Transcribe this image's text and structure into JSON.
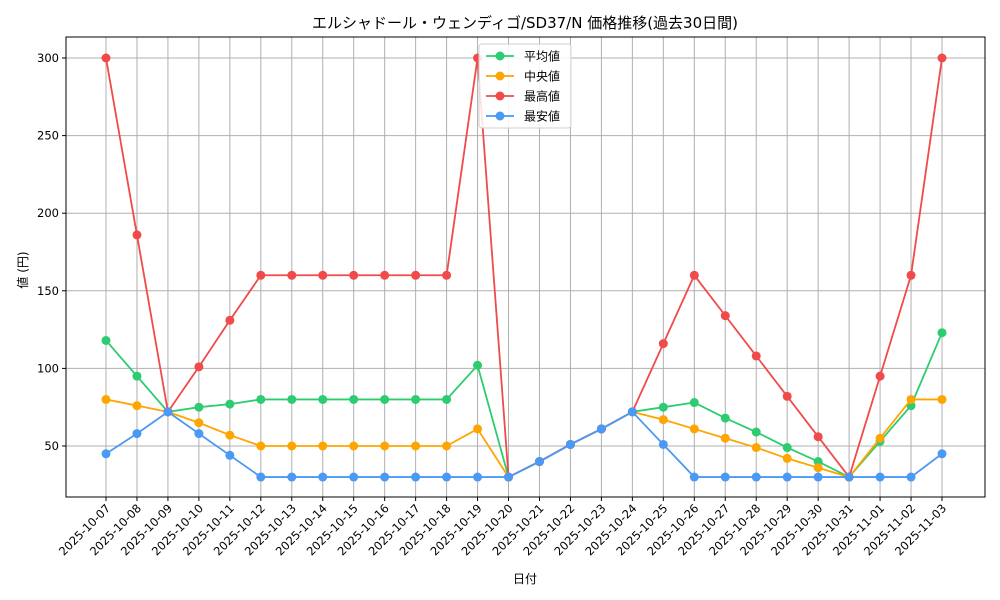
{
  "chart_data": {
    "type": "line",
    "title": "エルシャドール・ウェンディゴ/SD37/N 価格推移(過去30日間)",
    "xlabel": "日付",
    "ylabel": "値 (円)",
    "ylim": [
      16,
      315
    ],
    "yticks": [
      50,
      100,
      150,
      200,
      250,
      300
    ],
    "grid": true,
    "legend_position": "upper center",
    "x": [
      "2025-10-07",
      "2025-10-08",
      "2025-10-09",
      "2025-10-10",
      "2025-10-11",
      "2025-10-12",
      "2025-10-13",
      "2025-10-14",
      "2025-10-15",
      "2025-10-16",
      "2025-10-17",
      "2025-10-18",
      "2025-10-19",
      "2025-10-20",
      "2025-10-21",
      "2025-10-22",
      "2025-10-23",
      "2025-10-24",
      "2025-10-25",
      "2025-10-26",
      "2025-10-27",
      "2025-10-28",
      "2025-10-29",
      "2025-10-30",
      "2025-10-31",
      "2025-11-01",
      "2025-11-02",
      "2025-11-03"
    ],
    "series": [
      {
        "name": "平均値",
        "color": "#2ecc71",
        "values": [
          118,
          95,
          72,
          75,
          77,
          80,
          80,
          80,
          80,
          80,
          80,
          80,
          102,
          30,
          40,
          51,
          61,
          72,
          75,
          78,
          68,
          59,
          49,
          40,
          30,
          53,
          76,
          123
        ]
      },
      {
        "name": "中央値",
        "color": "#ffa500",
        "values": [
          80,
          76,
          72,
          65,
          57,
          50,
          50,
          50,
          50,
          50,
          50,
          50,
          61,
          30,
          40,
          51,
          61,
          72,
          67,
          61,
          55,
          49,
          42,
          36,
          30,
          55,
          80,
          80
        ]
      },
      {
        "name": "最高値",
        "color": "#f04a4a",
        "values": [
          300,
          186,
          72,
          101,
          131,
          160,
          160,
          160,
          160,
          160,
          160,
          160,
          300,
          30,
          40,
          51,
          61,
          72,
          116,
          160,
          134,
          108,
          82,
          56,
          30,
          95,
          160,
          300
        ]
      },
      {
        "name": "最安値",
        "color": "#4a9af5",
        "values": [
          45,
          58,
          72,
          58,
          44,
          30,
          30,
          30,
          30,
          30,
          30,
          30,
          30,
          30,
          40,
          51,
          61,
          72,
          51,
          30,
          30,
          30,
          30,
          30,
          30,
          30,
          30,
          45
        ]
      }
    ]
  }
}
